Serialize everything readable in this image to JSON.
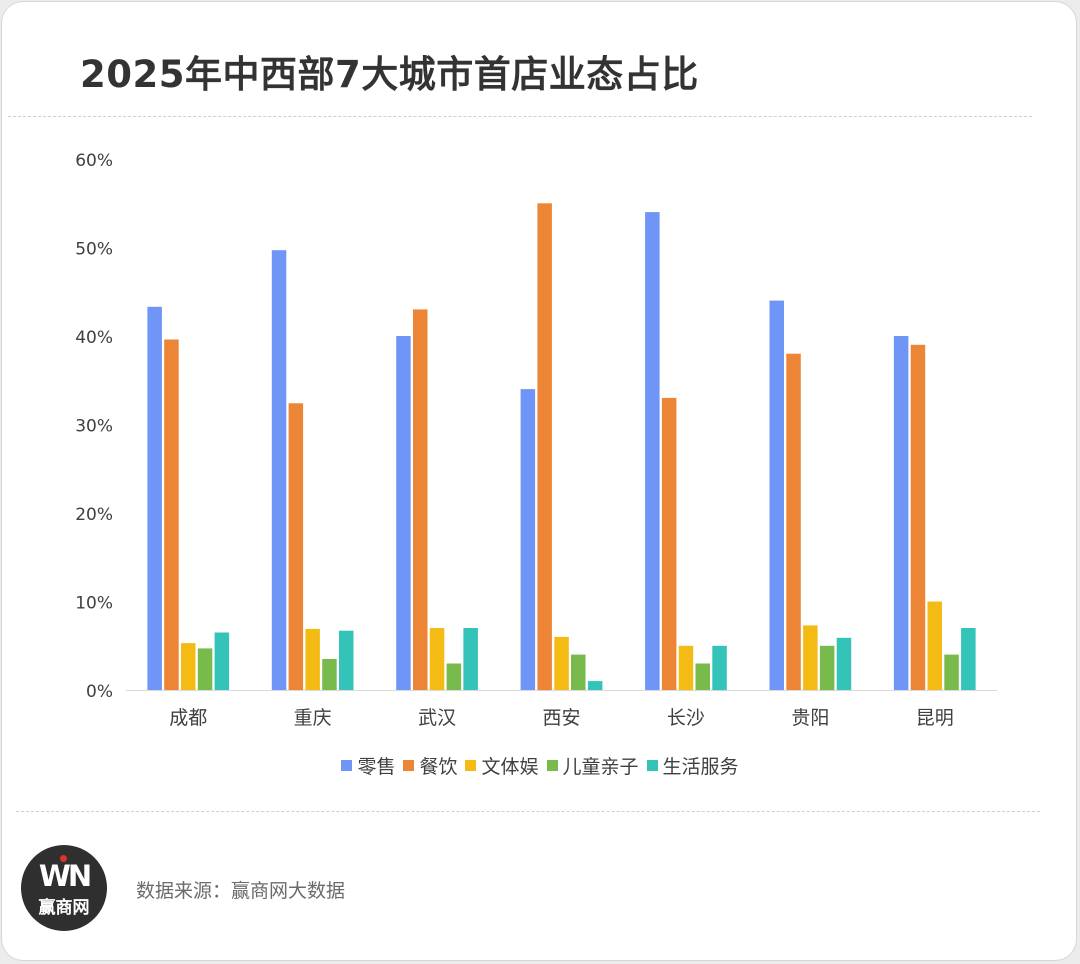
{
  "title": "2025年中西部7大城市首店业态占比",
  "source": "数据来源：赢商网大数据",
  "logo": {
    "mark": "WN",
    "name": "赢商网",
    "accent": "#e0312b",
    "background": "#2f2f2f"
  },
  "chart_data": {
    "type": "bar",
    "categories": [
      "成都",
      "重庆",
      "武汉",
      "西安",
      "长沙",
      "贵阳",
      "昆明"
    ],
    "series": [
      {
        "name": "零售",
        "color": "#6f96f6",
        "values": [
          43.3,
          49.7,
          40,
          34,
          54,
          44,
          40
        ]
      },
      {
        "name": "餐饮",
        "color": "#ed8536",
        "values": [
          39.6,
          32.4,
          43,
          55,
          33,
          38,
          39
        ]
      },
      {
        "name": "文体娱",
        "color": "#f4bb14",
        "values": [
          5.3,
          6.9,
          7,
          6,
          5,
          7.3,
          10
        ]
      },
      {
        "name": "儿童亲子",
        "color": "#79ba4c",
        "values": [
          4.7,
          3.5,
          3,
          4,
          3,
          5,
          4
        ]
      },
      {
        "name": "生活服务",
        "color": "#33c3b8",
        "values": [
          6.5,
          6.7,
          7,
          1,
          5,
          5.9,
          7
        ]
      }
    ],
    "yticks": [
      "0%",
      "10%",
      "20%",
      "30%",
      "40%",
      "50%",
      "60%"
    ],
    "ylim": [
      0,
      60
    ],
    "ylabel": "",
    "xlabel": "",
    "grid": false,
    "legend_position": "bottom"
  }
}
